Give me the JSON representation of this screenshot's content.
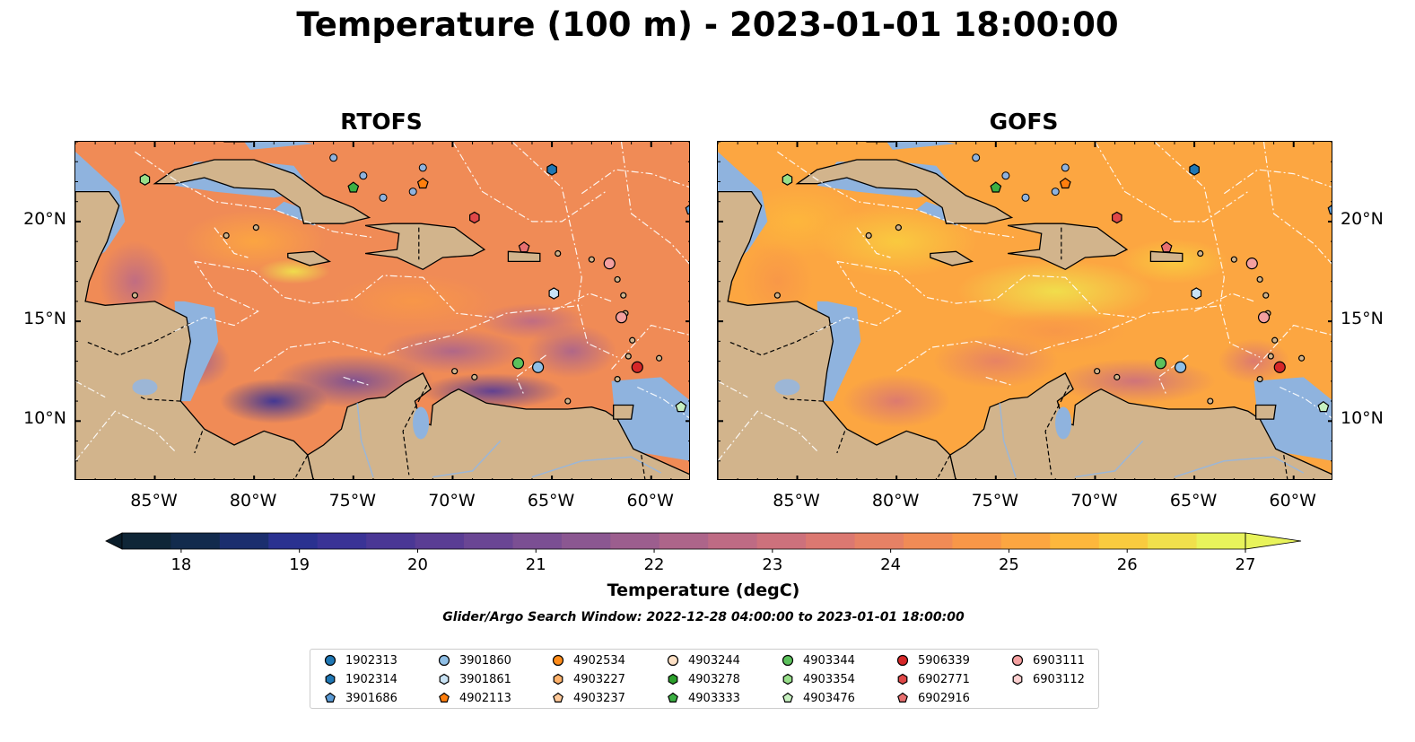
{
  "title": "Temperature (100 m) - 2023-01-01 18:00:00",
  "panels": [
    {
      "title": "RTOFS",
      "id": "rtofs"
    },
    {
      "title": "GOFS",
      "id": "gofs"
    }
  ],
  "map": {
    "lon_range": [
      -89,
      -58
    ],
    "lat_range": [
      7,
      24
    ],
    "lon_ticks": [
      {
        "value": -85,
        "label": "85°W"
      },
      {
        "value": -80,
        "label": "80°W"
      },
      {
        "value": -75,
        "label": "75°W"
      },
      {
        "value": -70,
        "label": "70°W"
      },
      {
        "value": -65,
        "label": "65°W"
      },
      {
        "value": -60,
        "label": "60°W"
      }
    ],
    "lat_ticks": [
      {
        "value": 20,
        "label": "20°N"
      },
      {
        "value": 15,
        "label": "15°N"
      },
      {
        "value": 10,
        "label": "10°N"
      }
    ],
    "land_color": "#d2b48c",
    "shallow_color": "#8fb3de",
    "deep_land_color": "#062235"
  },
  "colorbar": {
    "title": "Temperature (degC)",
    "min": 17.5,
    "max": 27.0,
    "step": 0.5,
    "tick_values": [
      18,
      19,
      20,
      21,
      22,
      23,
      24,
      25,
      26,
      27
    ],
    "tick_labels": [
      "18",
      "19",
      "20",
      "21",
      "22",
      "23",
      "24",
      "25",
      "26",
      "27"
    ],
    "colors": [
      "#0f2637",
      "#122b4d",
      "#1b2e6e",
      "#2a3190",
      "#3a3396",
      "#4a3795",
      "#5a3d94",
      "#6a4694",
      "#7b4f93",
      "#8b5791",
      "#9c5e8e",
      "#ad658a",
      "#be6b84",
      "#cd717c",
      "#db7871",
      "#e68165",
      "#f08b56",
      "#f89748",
      "#fca641",
      "#fdb73c",
      "#f9cb3f",
      "#f0e04c",
      "#e8f35b"
    ],
    "under_color": "#0a1d2a",
    "over_color": "#e8f35b"
  },
  "search_window": "Glider/Argo Search Window: 2022-12-28 04:00:00 to 2023-01-01 18:00:00",
  "legend": {
    "columns": [
      [
        {
          "label": "1902313",
          "color": "#1f77b4",
          "marker": "circle"
        },
        {
          "label": "1902314",
          "color": "#1f77b4",
          "marker": "hexagon"
        },
        {
          "label": "3901686",
          "color": "#5b9bd5",
          "marker": "pentagon"
        }
      ],
      [
        {
          "label": "3901860",
          "color": "#8fbfe6",
          "marker": "circle"
        },
        {
          "label": "3901861",
          "color": "#c9e3f5",
          "marker": "hexagon"
        },
        {
          "label": "4902113",
          "color": "#ff7f0e",
          "marker": "pentagon"
        }
      ],
      [
        {
          "label": "4902534",
          "color": "#ff8c1a",
          "marker": "circle"
        },
        {
          "label": "4903227",
          "color": "#ffb26b",
          "marker": "hexagon"
        },
        {
          "label": "4903237",
          "color": "#ffc999",
          "marker": "pentagon"
        }
      ],
      [
        {
          "label": "4903244",
          "color": "#fde0c5",
          "marker": "circle"
        },
        {
          "label": "4903278",
          "color": "#2ca02c",
          "marker": "hexagon"
        },
        {
          "label": "4903333",
          "color": "#3cb043",
          "marker": "pentagon"
        }
      ],
      [
        {
          "label": "4903344",
          "color": "#5cc15c",
          "marker": "circle"
        },
        {
          "label": "4903354",
          "color": "#98df8a",
          "marker": "hexagon"
        },
        {
          "label": "4903476",
          "color": "#c7f0c0",
          "marker": "pentagon"
        }
      ],
      [
        {
          "label": "5906339",
          "color": "#d62728",
          "marker": "circle"
        },
        {
          "label": "6902771",
          "color": "#e04848",
          "marker": "hexagon"
        },
        {
          "label": "6902916",
          "color": "#e87070",
          "marker": "pentagon"
        }
      ],
      [
        {
          "label": "6903111",
          "color": "#f4a0a0",
          "marker": "circle"
        },
        {
          "label": "6903112",
          "color": "#fcd0d0",
          "marker": "hexagon"
        }
      ]
    ]
  },
  "floats": [
    {
      "lon": -85.5,
      "lat": 22.1,
      "color": "#98df8a",
      "marker": "hexagon"
    },
    {
      "lon": -65.0,
      "lat": 22.6,
      "color": "#1f77b4",
      "marker": "hexagon"
    },
    {
      "lon": -75.0,
      "lat": 21.7,
      "color": "#3cb043",
      "marker": "pentagon"
    },
    {
      "lon": -71.5,
      "lat": 21.9,
      "color": "#ff7f0e",
      "marker": "pentagon"
    },
    {
      "lon": -68.9,
      "lat": 20.2,
      "color": "#e04848",
      "marker": "hexagon"
    },
    {
      "lon": -66.4,
      "lat": 18.7,
      "color": "#e87070",
      "marker": "pentagon"
    },
    {
      "lon": -62.1,
      "lat": 17.9,
      "color": "#f4a0a0",
      "marker": "circle"
    },
    {
      "lon": -64.9,
      "lat": 16.4,
      "color": "#c9e3f5",
      "marker": "hexagon"
    },
    {
      "lon": -61.5,
      "lat": 15.2,
      "color": "#f4a0a0",
      "marker": "circle"
    },
    {
      "lon": -66.7,
      "lat": 12.9,
      "color": "#5cc15c",
      "marker": "circle"
    },
    {
      "lon": -65.7,
      "lat": 12.7,
      "color": "#8fbfe6",
      "marker": "circle"
    },
    {
      "lon": -60.7,
      "lat": 12.7,
      "color": "#d62728",
      "marker": "circle"
    },
    {
      "lon": -58.5,
      "lat": 10.7,
      "color": "#c7f0c0",
      "marker": "pentagon"
    },
    {
      "lon": -58.0,
      "lat": 20.6,
      "color": "#5b9bd5",
      "marker": "pentagon"
    }
  ]
}
